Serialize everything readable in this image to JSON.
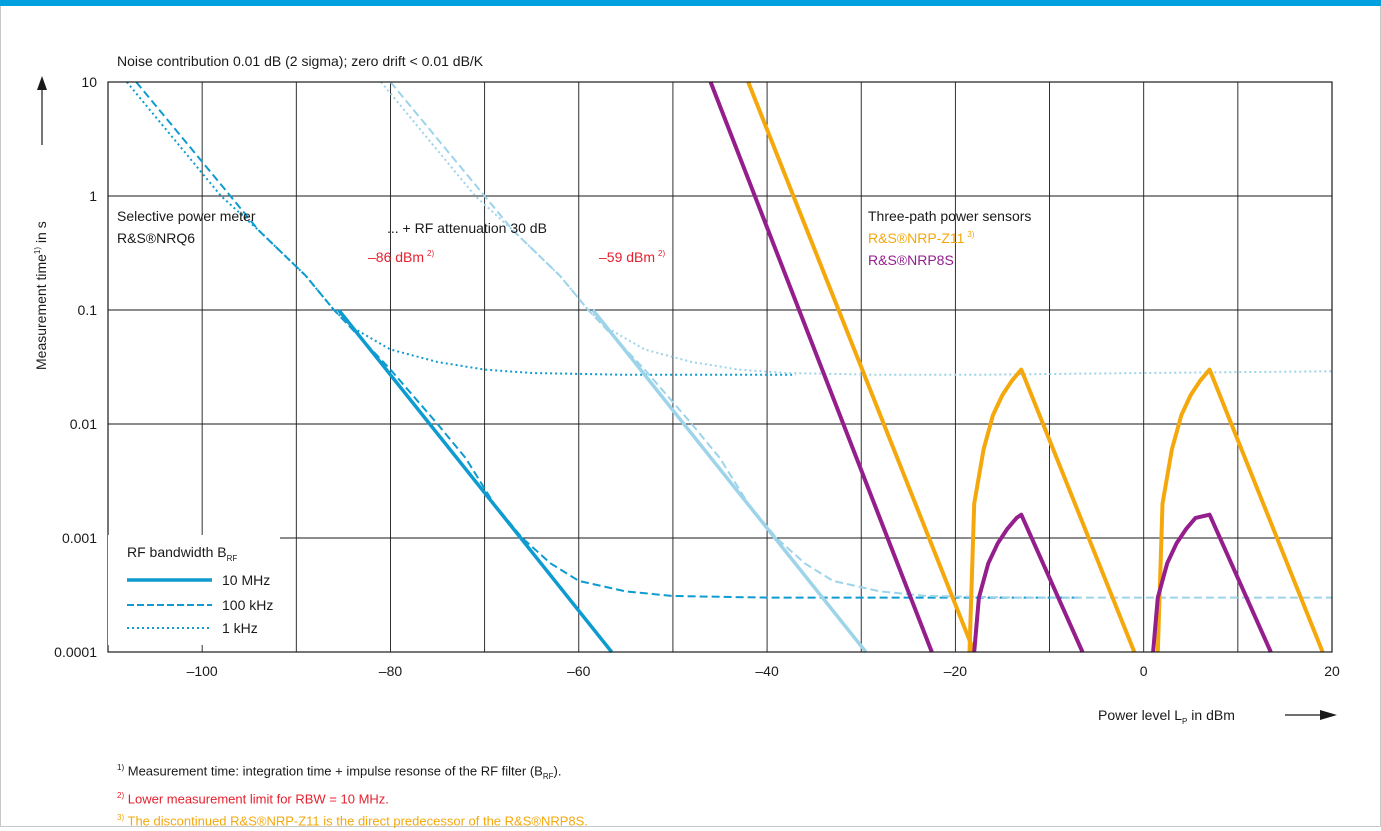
{
  "chart_data": {
    "type": "line",
    "title": "Noise contribution 0.01 dB (2 sigma); zero drift < 0.01 dB/K",
    "xlabel": "Power level L",
    "xlabel_sub": "P",
    "xlabel_unit": " in dBm",
    "ylabel": "Measurement time",
    "ylabel_sup": "1)",
    "ylabel_unit": " in s",
    "xlim": [
      -110,
      20
    ],
    "ylim": [
      0.0001,
      10
    ],
    "y_scale": "log",
    "grid": true,
    "x_ticks": [
      -100,
      -80,
      -60,
      -40,
      -20,
      0,
      20
    ],
    "x_tick_labels": [
      "–100",
      "–80",
      "–60",
      "–40",
      "–20",
      "0",
      "20"
    ],
    "y_ticks": [
      10,
      1,
      0.1,
      0.01,
      0.001,
      0.0001
    ],
    "y_tick_labels": [
      "10",
      "1",
      "0.1",
      "0.01",
      "0.001",
      "0.0001"
    ],
    "colors": {
      "nrq6": "#0e9bd0",
      "nrq6_att": "#9dd4ea",
      "nrp_z11": "#f4a80c",
      "nrp8s": "#941e8c",
      "limit": "#e4212e"
    },
    "series": [
      {
        "group": "nrq6",
        "style": "solid",
        "points": [
          [
            -85.5,
            0.1
          ],
          [
            -56.5,
            0.0001
          ]
        ]
      },
      {
        "group": "nrq6",
        "style": "dashed",
        "points": [
          [
            -107,
            10
          ],
          [
            -97,
            1
          ],
          [
            -94,
            0.5
          ],
          [
            -89,
            0.2
          ],
          [
            -86,
            0.1
          ],
          [
            -80,
            0.03
          ],
          [
            -75,
            0.01
          ],
          [
            -72,
            0.005
          ],
          [
            -69,
            0.002
          ],
          [
            -66,
            0.001
          ],
          [
            -63,
            0.0006
          ],
          [
            -60,
            0.00042
          ],
          [
            -55,
            0.00034
          ],
          [
            -50,
            0.00031
          ],
          [
            -40,
            0.0003
          ],
          [
            -30,
            0.0003
          ],
          [
            -20,
            0.0003
          ],
          [
            -7,
            0.0003
          ]
        ]
      },
      {
        "group": "nrq6",
        "style": "dotted",
        "points": [
          [
            -108,
            10
          ],
          [
            -98,
            1
          ],
          [
            -94,
            0.5
          ],
          [
            -89,
            0.2
          ],
          [
            -86,
            0.1
          ],
          [
            -84,
            0.07
          ],
          [
            -80,
            0.045
          ],
          [
            -75,
            0.035
          ],
          [
            -70,
            0.03
          ],
          [
            -65,
            0.028
          ],
          [
            -55,
            0.027
          ],
          [
            -45,
            0.027
          ],
          [
            -37,
            0.027
          ]
        ]
      },
      {
        "group": "nrq6_att",
        "style": "solid",
        "points": [
          [
            -58.5,
            0.1
          ],
          [
            -29.5,
            0.0001
          ]
        ]
      },
      {
        "group": "nrq6_att",
        "style": "dashed",
        "points": [
          [
            -80,
            10
          ],
          [
            -70,
            1
          ],
          [
            -67,
            0.5
          ],
          [
            -62,
            0.2
          ],
          [
            -59,
            0.1
          ],
          [
            -53,
            0.03
          ],
          [
            -48,
            0.01
          ],
          [
            -45,
            0.005
          ],
          [
            -42,
            0.002
          ],
          [
            -39,
            0.001
          ],
          [
            -36,
            0.0006
          ],
          [
            -33,
            0.00042
          ],
          [
            -28,
            0.00034
          ],
          [
            -23,
            0.00031
          ],
          [
            -13,
            0.0003
          ],
          [
            0,
            0.0003
          ],
          [
            20,
            0.0003
          ]
        ]
      },
      {
        "group": "nrq6_att",
        "style": "dotted",
        "points": [
          [
            -81,
            10
          ],
          [
            -71,
            1
          ],
          [
            -67,
            0.5
          ],
          [
            -62,
            0.2
          ],
          [
            -59,
            0.1
          ],
          [
            -57,
            0.07
          ],
          [
            -53,
            0.045
          ],
          [
            -48,
            0.035
          ],
          [
            -43,
            0.03
          ],
          [
            -38,
            0.028
          ],
          [
            -28,
            0.027
          ],
          [
            -18,
            0.027
          ],
          [
            0,
            0.028
          ],
          [
            20,
            0.029
          ]
        ]
      },
      {
        "group": "nrp_z11",
        "style": "thick",
        "points": [
          [
            -42,
            10
          ],
          [
            -18,
            0.0001
          ]
        ]
      },
      {
        "group": "nrp_z11",
        "style": "thick",
        "points": [
          [
            -18.5,
            0.0001
          ],
          [
            -18,
            0.002
          ],
          [
            -17,
            0.006
          ],
          [
            -16,
            0.012
          ],
          [
            -15,
            0.018
          ],
          [
            -14,
            0.024
          ],
          [
            -13,
            0.03
          ],
          [
            -1,
            0.0001
          ]
        ]
      },
      {
        "group": "nrp_z11",
        "style": "thick",
        "points": [
          [
            1.5,
            0.0001
          ],
          [
            2,
            0.002
          ],
          [
            3,
            0.006
          ],
          [
            4,
            0.012
          ],
          [
            5,
            0.018
          ],
          [
            6,
            0.024
          ],
          [
            7,
            0.03
          ],
          [
            19,
            0.0001
          ]
        ]
      },
      {
        "group": "nrp8s",
        "style": "thick",
        "points": [
          [
            -46,
            10
          ],
          [
            -22.5,
            0.0001
          ]
        ]
      },
      {
        "group": "nrp8s",
        "style": "thick",
        "points": [
          [
            -18,
            0.0001
          ],
          [
            -17.5,
            0.0003
          ],
          [
            -16.5,
            0.0006
          ],
          [
            -15.5,
            0.0009
          ],
          [
            -14.5,
            0.0012
          ],
          [
            -13.5,
            0.0015
          ],
          [
            -13,
            0.0016
          ],
          [
            -6.5,
            0.0001
          ]
        ]
      },
      {
        "group": "nrp8s",
        "style": "thick",
        "points": [
          [
            1,
            0.0001
          ],
          [
            1.5,
            0.0003
          ],
          [
            2.5,
            0.0006
          ],
          [
            3.5,
            0.0009
          ],
          [
            4.5,
            0.0012
          ],
          [
            5.5,
            0.0015
          ],
          [
            7,
            0.0016
          ],
          [
            13.5,
            0.0001
          ]
        ]
      }
    ],
    "annotations": {
      "nrq6_title": "Selective power meter",
      "nrq6_name": "R&S®NRQ6",
      "attenuation": "... + RF attenuation 30 dB",
      "limit_left": "–86 dBm",
      "limit_right": "–59 dBm",
      "limit_sup": "2)",
      "sensors_title": "Three-path power sensors",
      "nrp_z11": "R&S®NRP-Z11",
      "nrp_z11_sup": "3)",
      "nrp8s": "R&S®NRP8S"
    },
    "legend": {
      "placement": "bottom-left",
      "title": "RF bandwidth B",
      "title_sub": "RF",
      "entries": [
        {
          "label": "10 MHz",
          "style": "solid"
        },
        {
          "label": "100 kHz",
          "style": "dashed"
        },
        {
          "label": "1 kHz",
          "style": "dotted"
        }
      ]
    }
  },
  "footnotes": {
    "fn1": {
      "mark": "1)",
      "text_a": "Measurement time: integration time + impulse resonse of the RF filter (B",
      "text_sub": "RF",
      "text_b": ")."
    },
    "fn2": {
      "mark": "2)",
      "text": "Lower measurement limit for RBW = 10 MHz."
    },
    "fn3": {
      "mark": "3)",
      "text": "The discontinued R&S®NRP-Z11 is the direct predecessor of the R&S®NRP8S."
    }
  }
}
